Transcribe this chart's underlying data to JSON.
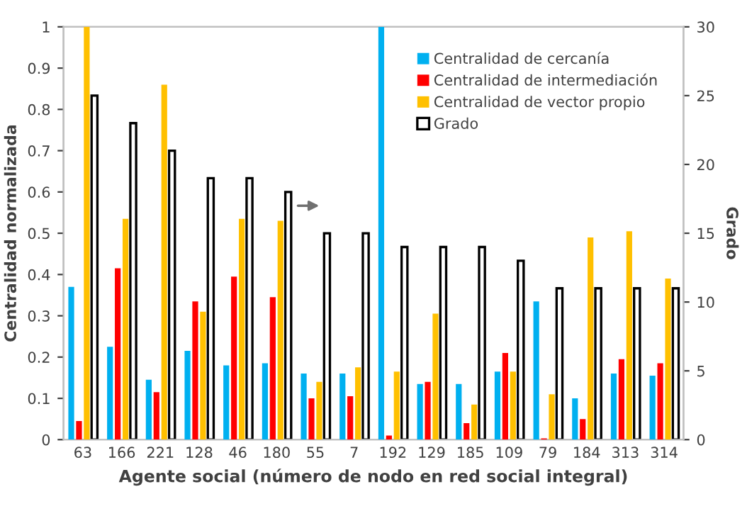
{
  "chart_data": {
    "type": "bar",
    "xlabel": "Agente social (número de nodo en red social integral)",
    "ylabel": "Centralidad normalizada",
    "y2label": "Grado",
    "categories": [
      "63",
      "166",
      "221",
      "128",
      "46",
      "180",
      "55",
      "7",
      "192",
      "129",
      "185",
      "109",
      "79",
      "184",
      "313",
      "314"
    ],
    "series": [
      {
        "name": "Centralidad de cercanía",
        "color": "#00b0f0",
        "values": [
          0.37,
          0.225,
          0.145,
          0.215,
          0.18,
          0.185,
          0.16,
          0.16,
          1.0,
          0.135,
          0.135,
          0.165,
          0.335,
          0.1,
          0.16,
          0.155
        ]
      },
      {
        "name": "Centralidad de intermediación",
        "color": "#ff0000",
        "values": [
          0.045,
          0.415,
          0.115,
          0.335,
          0.395,
          0.345,
          0.1,
          0.105,
          0.01,
          0.14,
          0.04,
          0.21,
          0.003,
          0.05,
          0.195,
          0.185
        ]
      },
      {
        "name": "Centralidad de vector propio",
        "color": "#ffc000",
        "values": [
          1.0,
          0.535,
          0.86,
          0.31,
          0.535,
          0.53,
          0.14,
          0.175,
          0.165,
          0.305,
          0.085,
          0.165,
          0.11,
          0.49,
          0.505,
          0.39
        ]
      },
      {
        "name": "Grado",
        "color": "#ffffff",
        "axis": "y2",
        "values": [
          25,
          23,
          21,
          19,
          19,
          18,
          15,
          15,
          14,
          14,
          14,
          13,
          11,
          11,
          11,
          11
        ]
      }
    ],
    "ylim": [
      0,
      1
    ],
    "yticks": [
      0,
      0.1,
      0.2,
      0.3,
      0.4,
      0.5,
      0.6,
      0.7,
      0.8,
      0.9,
      1
    ],
    "y2lim": [
      0,
      30
    ],
    "y2ticks": [
      0,
      5,
      10,
      15,
      20,
      25,
      30
    ],
    "legend": "top right",
    "grid": false
  }
}
